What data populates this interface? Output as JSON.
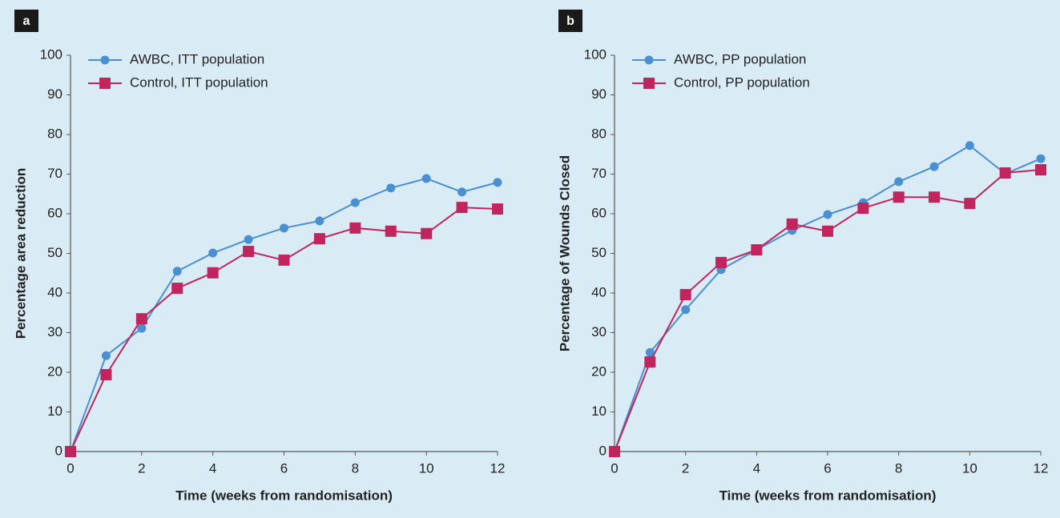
{
  "chart_data": [
    {
      "type": "line",
      "panel": "a",
      "xlabel": "Time (weeks from randomisation)",
      "ylabel": "Percentage area reduction",
      "x": [
        0,
        1,
        2,
        3,
        4,
        5,
        6,
        7,
        8,
        9,
        10,
        11,
        12
      ],
      "series": [
        {
          "name": "AWBC, ITT population",
          "color": "#4a90d0",
          "marker": "circle",
          "values": [
            0,
            24.2,
            31.1,
            45.5,
            50.1,
            53.5,
            56.4,
            58.2,
            62.8,
            66.5,
            68.9,
            65.5,
            67.9
          ]
        },
        {
          "name": "Control, ITT population",
          "color": "#c0255e",
          "marker": "square",
          "values": [
            0,
            19.4,
            33.5,
            41.2,
            45.1,
            50.5,
            48.3,
            53.7,
            56.4,
            55.6,
            55.0,
            61.6,
            61.2
          ]
        }
      ],
      "xlim": [
        0,
        12
      ],
      "xticks": [
        0,
        2,
        4,
        6,
        8,
        10,
        12
      ],
      "ylim": [
        0,
        100
      ],
      "yticks": [
        0,
        10,
        20,
        30,
        40,
        50,
        60,
        70,
        80,
        90,
        100
      ],
      "grid": false,
      "legend": "upper left"
    },
    {
      "type": "line",
      "panel": "b",
      "xlabel": "Time (weeks from randomisation)",
      "ylabel": "Percentage of Wounds Closed",
      "x": [
        0,
        1,
        2,
        3,
        4,
        5,
        6,
        7,
        8,
        9,
        10,
        11,
        12
      ],
      "series": [
        {
          "name": "AWBC, PP population",
          "color": "#4a90d0",
          "marker": "circle",
          "values": [
            0,
            25.0,
            35.8,
            45.9,
            50.9,
            55.8,
            59.8,
            62.8,
            68.1,
            71.9,
            77.2,
            70.1,
            73.9
          ]
        },
        {
          "name": "Control, PP population",
          "color": "#c0255e",
          "marker": "square",
          "values": [
            0,
            22.6,
            39.6,
            47.7,
            50.9,
            57.4,
            55.6,
            61.4,
            64.2,
            64.2,
            62.6,
            70.3,
            71.1
          ]
        }
      ],
      "xlim": [
        0,
        12
      ],
      "xticks": [
        0,
        2,
        4,
        6,
        8,
        10,
        12
      ],
      "ylim": [
        0,
        100
      ],
      "yticks": [
        0,
        10,
        20,
        30,
        40,
        50,
        60,
        70,
        80,
        90,
        100
      ],
      "grid": false,
      "legend": "upper left"
    }
  ]
}
